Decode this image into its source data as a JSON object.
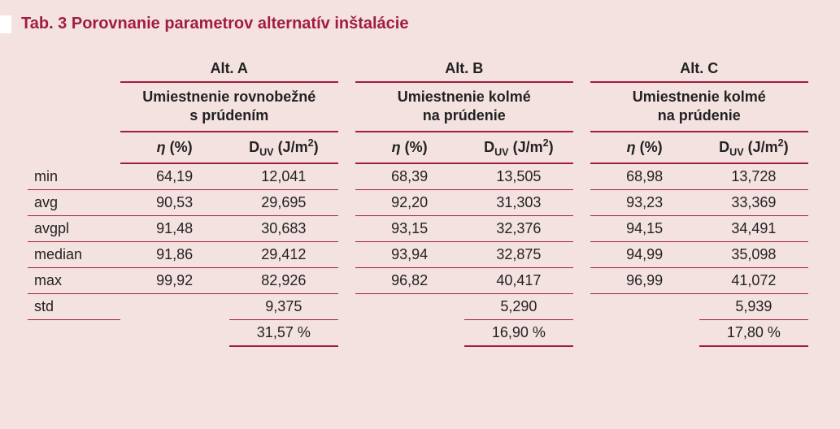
{
  "colors": {
    "panel_bg": "#f4e2e1",
    "accent": "#a11d3f",
    "border": "#a11d3f",
    "text": "#222222",
    "marker_bg": "#ffffff"
  },
  "title": "Tab. 3 Porovnanie parametrov alternatív inštalácie",
  "groups": [
    {
      "alt": "Alt. A",
      "desc_line1": "Umiestnenie rovnobežné",
      "desc_line2": "s prúdením"
    },
    {
      "alt": "Alt. B",
      "desc_line1": "Umiestnenie kolmé",
      "desc_line2": "na prúdenie"
    },
    {
      "alt": "Alt. C",
      "desc_line1": "Umiestnenie kolmé",
      "desc_line2": "na prúdenie"
    }
  ],
  "sub_headers": {
    "eta_html": "<i>η</i> (%)",
    "duv_html": "D<sub>UV</sub> (J/m<sup>2</sup>)"
  },
  "row_labels": [
    "min",
    "avg",
    "avgpl",
    "median",
    "max",
    "std"
  ],
  "data": {
    "min": {
      "a_eta": "64,19",
      "a_d": "12,041",
      "b_eta": "68,39",
      "b_d": "13,505",
      "c_eta": "68,98",
      "c_d": "13,728"
    },
    "avg": {
      "a_eta": "90,53",
      "a_d": "29,695",
      "b_eta": "92,20",
      "b_d": "31,303",
      "c_eta": "93,23",
      "c_d": "33,369"
    },
    "avgpl": {
      "a_eta": "91,48",
      "a_d": "30,683",
      "b_eta": "93,15",
      "b_d": "32,376",
      "c_eta": "94,15",
      "c_d": "34,491"
    },
    "median": {
      "a_eta": "91,86",
      "a_d": "29,412",
      "b_eta": "93,94",
      "b_d": "32,875",
      "c_eta": "94,99",
      "c_d": "35,098"
    },
    "max": {
      "a_eta": "99,92",
      "a_d": "82,926",
      "b_eta": "96,82",
      "b_d": "40,417",
      "c_eta": "96,99",
      "c_d": "41,072"
    },
    "std": {
      "a_d": "9,375",
      "b_d": "5,290",
      "c_d": "5,939"
    },
    "pct": {
      "a": "31,57 %",
      "b": "16,90 %",
      "c": "17,80 %"
    }
  }
}
